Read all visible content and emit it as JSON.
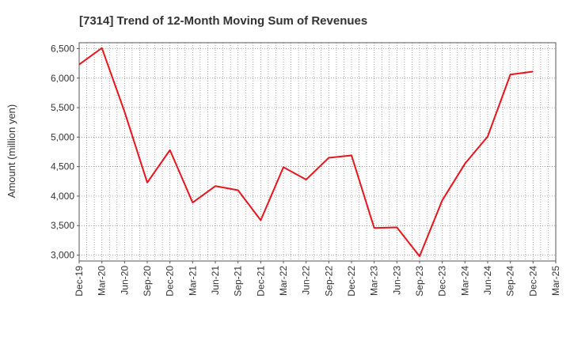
{
  "chart_data": {
    "type": "line",
    "title": "[7314]  Trend of 12-Month Moving Sum of Revenues",
    "xlabel": "",
    "ylabel": "Amount (million yen)",
    "ylim": [
      2900,
      6600
    ],
    "yticks": [
      "3,000",
      "3,500",
      "4,000",
      "4,500",
      "5,000",
      "5,500",
      "6,000",
      "6,500"
    ],
    "ytick_values": [
      3000,
      3500,
      4000,
      4500,
      5000,
      5500,
      6000,
      6500
    ],
    "xticks": [
      "Dec-19",
      "Mar-20",
      "Jun-20",
      "Sep-20",
      "Dec-20",
      "Mar-21",
      "Jun-21",
      "Sep-21",
      "Dec-21",
      "Mar-22",
      "Jun-22",
      "Sep-22",
      "Dec-22",
      "Mar-23",
      "Jun-23",
      "Sep-23",
      "Dec-23",
      "Mar-24",
      "Jun-24",
      "Sep-24",
      "Dec-24",
      "Mar-25"
    ],
    "grid": true,
    "line_color": "#e8141b",
    "series": [
      {
        "values": [
          6230,
          6510,
          5430,
          4230,
          4780,
          3890,
          4170,
          4100,
          3590,
          4490,
          4280,
          4650,
          4690,
          3460,
          3470,
          2980,
          3930,
          4550,
          5010,
          6060,
          6110
        ]
      }
    ]
  }
}
